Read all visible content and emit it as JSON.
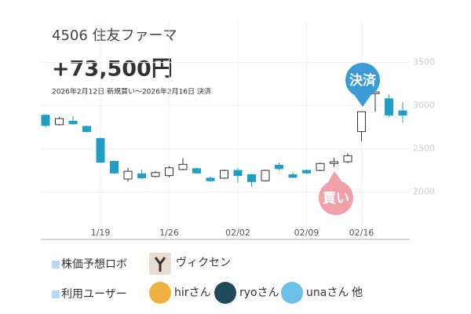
{
  "header": {
    "title": "4506 住友ファーマ",
    "profit": "+73,500円",
    "period": "2026年2月12日 新規買い～2026年2月16日 決済"
  },
  "chart_data": {
    "type": "candlestick",
    "categories": [
      null,
      null,
      null,
      null,
      "1/19",
      null,
      null,
      null,
      null,
      "1/26",
      null,
      null,
      null,
      null,
      "02/02",
      null,
      null,
      null,
      null,
      "02/09",
      null,
      null,
      null,
      "02/16",
      null,
      null,
      null
    ],
    "open": [
      2890,
      2780,
      2820,
      2760,
      2620,
      2355,
      2150,
      2210,
      2180,
      2190,
      2260,
      2270,
      2160,
      2160,
      2250,
      2200,
      2130,
      2310,
      2200,
      2250,
      2250,
      2330,
      2350,
      2700,
      3140,
      3080,
      2940
    ],
    "high": [
      2900,
      2870,
      2880,
      2770,
      2630,
      2360,
      2280,
      2260,
      2240,
      2300,
      2390,
      2280,
      2180,
      2260,
      2280,
      2210,
      2260,
      2340,
      2230,
      2260,
      2340,
      2400,
      2450,
      2930,
      3170,
      3130,
      3040
    ],
    "low": [
      2750,
      2770,
      2780,
      2690,
      2340,
      2210,
      2120,
      2150,
      2170,
      2170,
      2250,
      2210,
      2120,
      2150,
      2110,
      2060,
      2120,
      2250,
      2160,
      2210,
      2240,
      2290,
      2330,
      2590,
      2930,
      2870,
      2800
    ],
    "close": [
      2770,
      2850,
      2790,
      2700,
      2345,
      2220,
      2240,
      2165,
      2225,
      2280,
      2320,
      2220,
      2130,
      2250,
      2190,
      2120,
      2250,
      2270,
      2170,
      2220,
      2330,
      2350,
      2420,
      2930,
      3160,
      2890,
      2890
    ],
    "up_color": "#ffffff",
    "down_color": "#1f9fc6",
    "ylim": [
      1450,
      3970
    ],
    "yticks": [
      2000,
      2500,
      3000,
      3500
    ],
    "grid": true,
    "annotations": [
      "決済",
      "買い"
    ]
  },
  "footer": {
    "robot_label": "株価予想ロボ",
    "robot_name": "ヴィクセン",
    "users_label": "利用ユーザー",
    "users": [
      "hirさん",
      "ryoさん",
      "unaさん"
    ],
    "more": "他"
  }
}
